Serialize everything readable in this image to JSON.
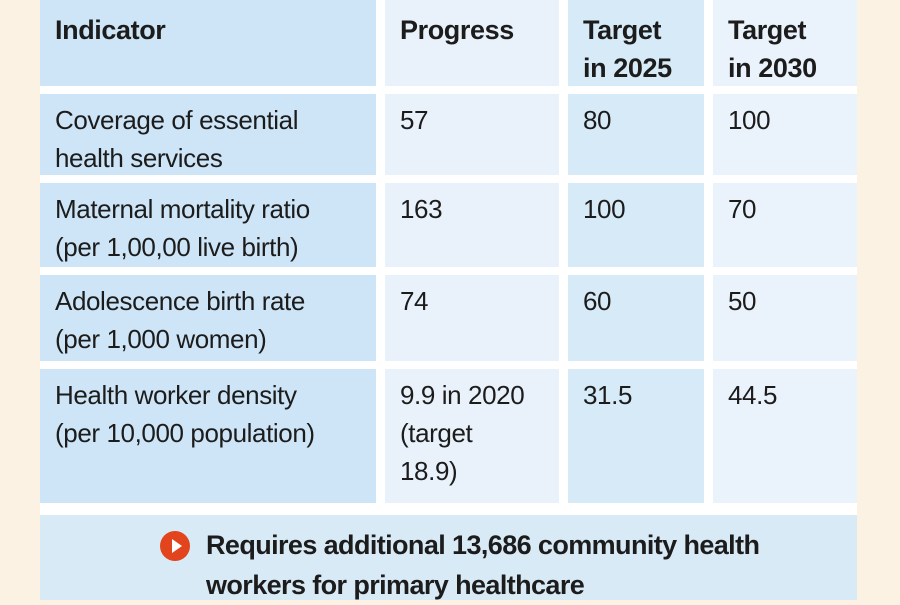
{
  "colors": {
    "page_background": "#fcf2e3",
    "cell_blue_dark": "#cde5f6",
    "cell_blue_light": "#e9f2fa",
    "cell_blue_mid": "#d6eaf8",
    "footnote_band": "#d9eaf7",
    "bullet_orange": "#e2441e",
    "text": "#1c1c1c",
    "gap_white": "#ffffff"
  },
  "table": {
    "headers": [
      "Indicator",
      "Progress",
      [
        "Target",
        "in 2025"
      ],
      [
        "Target",
        "in 2030"
      ]
    ],
    "rows": [
      {
        "indicator": [
          "Coverage of essential",
          "health services"
        ],
        "progress": "57",
        "target_2025": "80",
        "target_2030": "100"
      },
      {
        "indicator": [
          "Maternal mortality ratio",
          "(per 1,00,00 live birth)"
        ],
        "progress": "163",
        "target_2025": "100",
        "target_2030": "70"
      },
      {
        "indicator": [
          "Adolescence birth rate",
          "(per 1,000 women)"
        ],
        "progress": "74",
        "target_2025": "60",
        "target_2030": "50"
      },
      {
        "indicator": [
          "Health worker density",
          "(per 10,000 population)"
        ],
        "progress": [
          "9.9 in 2020",
          "(target",
          "18.9)"
        ],
        "target_2025": "31.5",
        "target_2030": "44.5"
      }
    ]
  },
  "footer": {
    "icon": "arrow-right-circle-icon",
    "lines": [
      "Requires additional 13,686 community health",
      "workers for primary healthcare"
    ]
  },
  "chart_data": {
    "type": "table",
    "title": "",
    "columns": [
      "Indicator",
      "Progress",
      "Target in 2025",
      "Target in 2030"
    ],
    "rows": [
      [
        "Coverage of essential health services",
        "57",
        "80",
        "100"
      ],
      [
        "Maternal mortality ratio (per 1,00,00 live birth)",
        "163",
        "100",
        "70"
      ],
      [
        "Adolescence birth rate (per 1,000 women)",
        "74",
        "60",
        "50"
      ],
      [
        "Health worker density (per 10,000 population)",
        "9.9 in 2020 (target 18.9)",
        "31.5",
        "44.5"
      ]
    ],
    "annotations": [
      "Requires additional 13,686 community health workers for primary healthcare"
    ],
    "layout": {
      "column_shading_alternating": true,
      "grid": "white gaps between cells",
      "page_margins": "cream"
    }
  }
}
